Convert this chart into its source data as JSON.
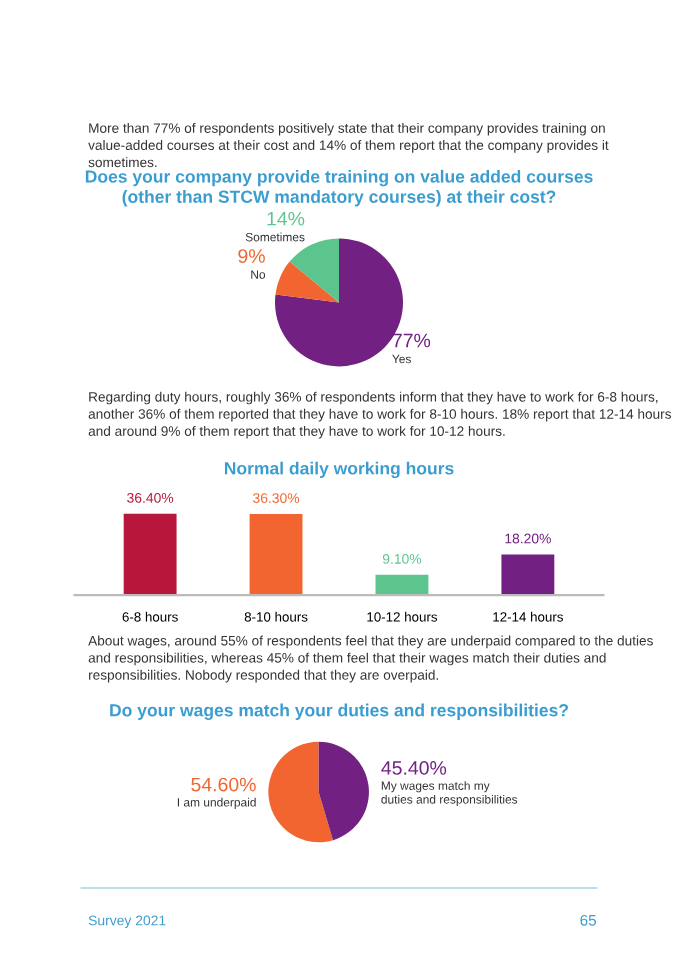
{
  "chart_data": [
    {
      "type": "pie",
      "title": "Does your company provide training on value added courses\n(other than STCW mandatory courses) at their cost?",
      "categories": [
        "Yes",
        "No",
        "Sometimes"
      ],
      "values": [
        77,
        9,
        14
      ],
      "value_labels": [
        "77%",
        "9%",
        "14%"
      ],
      "colors": [
        "#722183",
        "#f26530",
        "#5cc58d"
      ],
      "legend": false,
      "annotations": [
        "More than 77% of respondents positively state that their company provides training on value-added courses at their cost and 14% of them report that the company provides it sometimes."
      ]
    },
    {
      "type": "bar",
      "title": "Normal daily working hours",
      "categories": [
        "6-8 hours",
        "8-10 hours",
        "10-12 hours",
        "12-14 hours"
      ],
      "values": [
        36.4,
        36.3,
        9.1,
        18.2
      ],
      "value_labels": [
        "36.40%",
        "36.30%",
        "9.10%",
        "18.20%"
      ],
      "colors": [
        "#b8173c",
        "#f26530",
        "#5cc58d",
        "#722183"
      ],
      "legend": false,
      "grid": false,
      "annotations": [
        "Regarding duty hours, roughly 36% of respondents inform that they have to work for 6-8 hours, another 36% of them reported that they have to work for 8-10 hours. 18% report that 12-14 hours and around 9% of them report that they have to work for 10-12 hours."
      ]
    },
    {
      "type": "pie",
      "title": "Do your wages match your duties and responsibilities?",
      "categories": [
        "I am underpaid",
        "My wages match my\nduties and responsibilities"
      ],
      "values": [
        54.6,
        45.4
      ],
      "value_labels": [
        "54.60%",
        "45.40%"
      ],
      "colors": [
        "#f26530",
        "#722183"
      ],
      "legend": false,
      "annotations": [
        "About wages, around 55% of respondents feel that they are underpaid compared to the duties and responsibilities, whereas 45% of them feel that their wages match their duties and responsibilities. Nobody responded that they are overpaid.",
        "Survey 2021",
        "65"
      ]
    }
  ]
}
